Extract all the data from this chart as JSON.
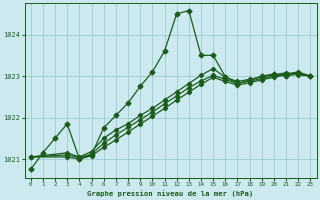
{
  "bg_color": "#cce9f0",
  "grid_color": "#a0c8d0",
  "line_color": "#1a5c1a",
  "title": "Graphe pression niveau de la mer (hPa)",
  "xlim": [
    -0.5,
    23.5
  ],
  "ylim": [
    1020.55,
    1024.75
  ],
  "yticks": [
    1021,
    1022,
    1023,
    1024
  ],
  "xticks": [
    0,
    1,
    2,
    3,
    4,
    5,
    6,
    7,
    8,
    9,
    10,
    11,
    12,
    13,
    14,
    15,
    16,
    17,
    18,
    19,
    20,
    21,
    22,
    23
  ],
  "line1_x": [
    0,
    1,
    2,
    3,
    4,
    5,
    6,
    7,
    8,
    9,
    10,
    11,
    12,
    13,
    14,
    15,
    16,
    17,
    18,
    19,
    20,
    21,
    22,
    23
  ],
  "line1_y": [
    1020.75,
    1021.15,
    1021.5,
    1021.85,
    1021.0,
    1021.1,
    1021.75,
    1022.05,
    1022.35,
    1022.75,
    1023.1,
    1023.6,
    1024.5,
    1024.58,
    1023.5,
    1023.5,
    1022.98,
    1022.82,
    1022.9,
    1023.0,
    1023.05,
    1023.0,
    1023.05,
    1023.0
  ],
  "line2_x": [
    0,
    3,
    4,
    5,
    6,
    7,
    8,
    9,
    10,
    11,
    12,
    13,
    14,
    15,
    16,
    17,
    18,
    19,
    20,
    21,
    22,
    23
  ],
  "line2_y": [
    1021.05,
    1021.15,
    1021.05,
    1021.18,
    1021.5,
    1021.7,
    1021.85,
    1022.05,
    1022.22,
    1022.42,
    1022.62,
    1022.82,
    1023.02,
    1023.18,
    1022.97,
    1022.87,
    1022.92,
    1022.98,
    1023.03,
    1023.08,
    1023.03,
    1023.0
  ],
  "line3_x": [
    0,
    3,
    4,
    5,
    6,
    7,
    8,
    9,
    10,
    11,
    12,
    13,
    14,
    15,
    16,
    17,
    18,
    19,
    20,
    21,
    22,
    23
  ],
  "line3_y": [
    1021.05,
    1021.1,
    1021.03,
    1021.12,
    1021.38,
    1021.58,
    1021.76,
    1021.95,
    1022.13,
    1022.33,
    1022.52,
    1022.72,
    1022.88,
    1023.02,
    1022.92,
    1022.82,
    1022.88,
    1022.94,
    1023.0,
    1023.05,
    1023.1,
    1023.0
  ],
  "line4_x": [
    0,
    3,
    4,
    5,
    6,
    7,
    8,
    9,
    10,
    11,
    12,
    13,
    14,
    15,
    16,
    17,
    18,
    19,
    20,
    21,
    22,
    23
  ],
  "line4_y": [
    1021.05,
    1021.05,
    1021.0,
    1021.08,
    1021.28,
    1021.46,
    1021.65,
    1021.84,
    1022.03,
    1022.22,
    1022.42,
    1022.61,
    1022.8,
    1022.97,
    1022.87,
    1022.78,
    1022.84,
    1022.91,
    1022.97,
    1023.03,
    1023.08,
    1023.0
  ]
}
